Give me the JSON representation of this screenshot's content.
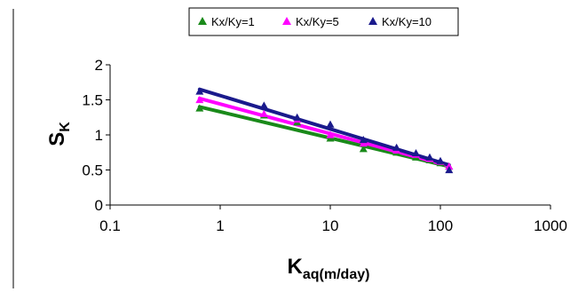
{
  "chart_data": {
    "type": "scatter",
    "x_scale": "log",
    "xlim": [
      0.1,
      1000
    ],
    "ylim": [
      0,
      2
    ],
    "x_ticks": [
      "0.1",
      "1",
      "10",
      "100",
      "1000"
    ],
    "y_ticks": [
      "0",
      "0.5",
      "1",
      "1.5",
      "2"
    ],
    "xlabel": {
      "main": "K",
      "sub": "aq(m/day)"
    },
    "ylabel": {
      "main": "S",
      "sub": "K"
    },
    "grid": false,
    "legend_position": "top",
    "trendlines": true,
    "series": [
      {
        "name": "Kx/Ky=1",
        "color": "#1a8a1a",
        "marker": "triangle",
        "x": [
          0.65,
          2.5,
          5,
          10,
          20,
          40,
          60,
          80,
          100,
          120
        ],
        "y": [
          1.38,
          1.28,
          1.18,
          0.95,
          0.8,
          0.75,
          0.68,
          0.64,
          0.6,
          0.55
        ],
        "fit": {
          "x": [
            0.65,
            120
          ],
          "y": [
            1.4,
            0.55
          ]
        }
      },
      {
        "name": "Kx/Ky=5",
        "color": "#ff00ff",
        "marker": "triangle",
        "x": [
          0.65,
          2.5,
          5,
          10,
          20,
          40,
          60,
          80,
          100,
          120
        ],
        "y": [
          1.5,
          1.3,
          1.22,
          1.0,
          0.88,
          0.78,
          0.72,
          0.66,
          0.62,
          0.55
        ],
        "fit": {
          "x": [
            0.65,
            120
          ],
          "y": [
            1.52,
            0.56
          ]
        }
      },
      {
        "name": "Kx/Ky=10",
        "color": "#1a1a8c",
        "marker": "triangle",
        "x": [
          0.65,
          2.5,
          5,
          10,
          20,
          40,
          60,
          80,
          100,
          120
        ],
        "y": [
          1.62,
          1.42,
          1.25,
          1.15,
          0.93,
          0.82,
          0.74,
          0.68,
          0.63,
          0.5
        ],
        "fit": {
          "x": [
            0.65,
            120
          ],
          "y": [
            1.65,
            0.57
          ]
        }
      }
    ]
  }
}
